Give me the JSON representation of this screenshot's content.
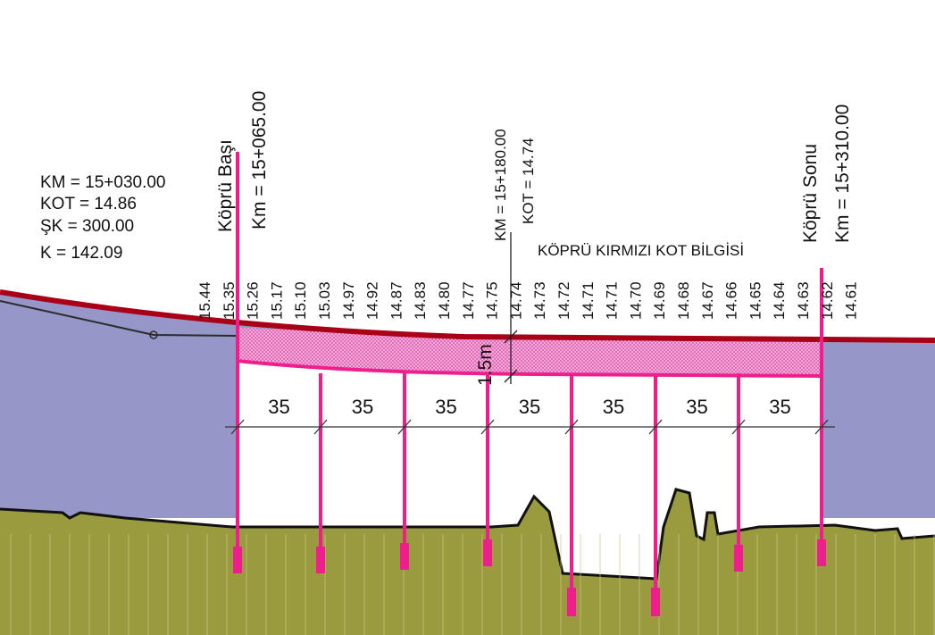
{
  "info_block": {
    "km": "KM = 15+030.00",
    "kot": "KOT = 14.86",
    "sk": "ŞK = 300.00",
    "k": "K = 142.09"
  },
  "bridge_start": {
    "name": "Köprü Başı",
    "km": "Km = 15+065.00"
  },
  "bridge_end": {
    "name": "Köprü Sonu",
    "km": "Km = 15+310.00"
  },
  "midpoint": {
    "km": "KM = 15+180.00",
    "kot": "KOT = 14.74"
  },
  "section_title": "KÖPRÜ KIRMIZI KOT BİLGİSİ",
  "depth_label": "1.5m",
  "elevations": [
    "15.44",
    "15.35",
    "15.26",
    "15.17",
    "15.10",
    "15.03",
    "14.97",
    "14.92",
    "14.87",
    "14.83",
    "14.80",
    "14.77",
    "14.75",
    "14.74",
    "14.73",
    "14.72",
    "14.71",
    "14.71",
    "14.70",
    "14.69",
    "14.68",
    "14.67",
    "14.66",
    "14.65",
    "14.64",
    "14.63",
    "14.62",
    "14.61"
  ],
  "span_lengths": [
    "35",
    "35",
    "35",
    "35",
    "35",
    "35",
    "35"
  ],
  "colors": {
    "sky_fill": "#9696c8",
    "ground_fill": "#9a9a3e",
    "road_line": "#a80016",
    "bridge_magenta": "#ee1f8c",
    "deck_hatch": "#f07bc4"
  }
}
